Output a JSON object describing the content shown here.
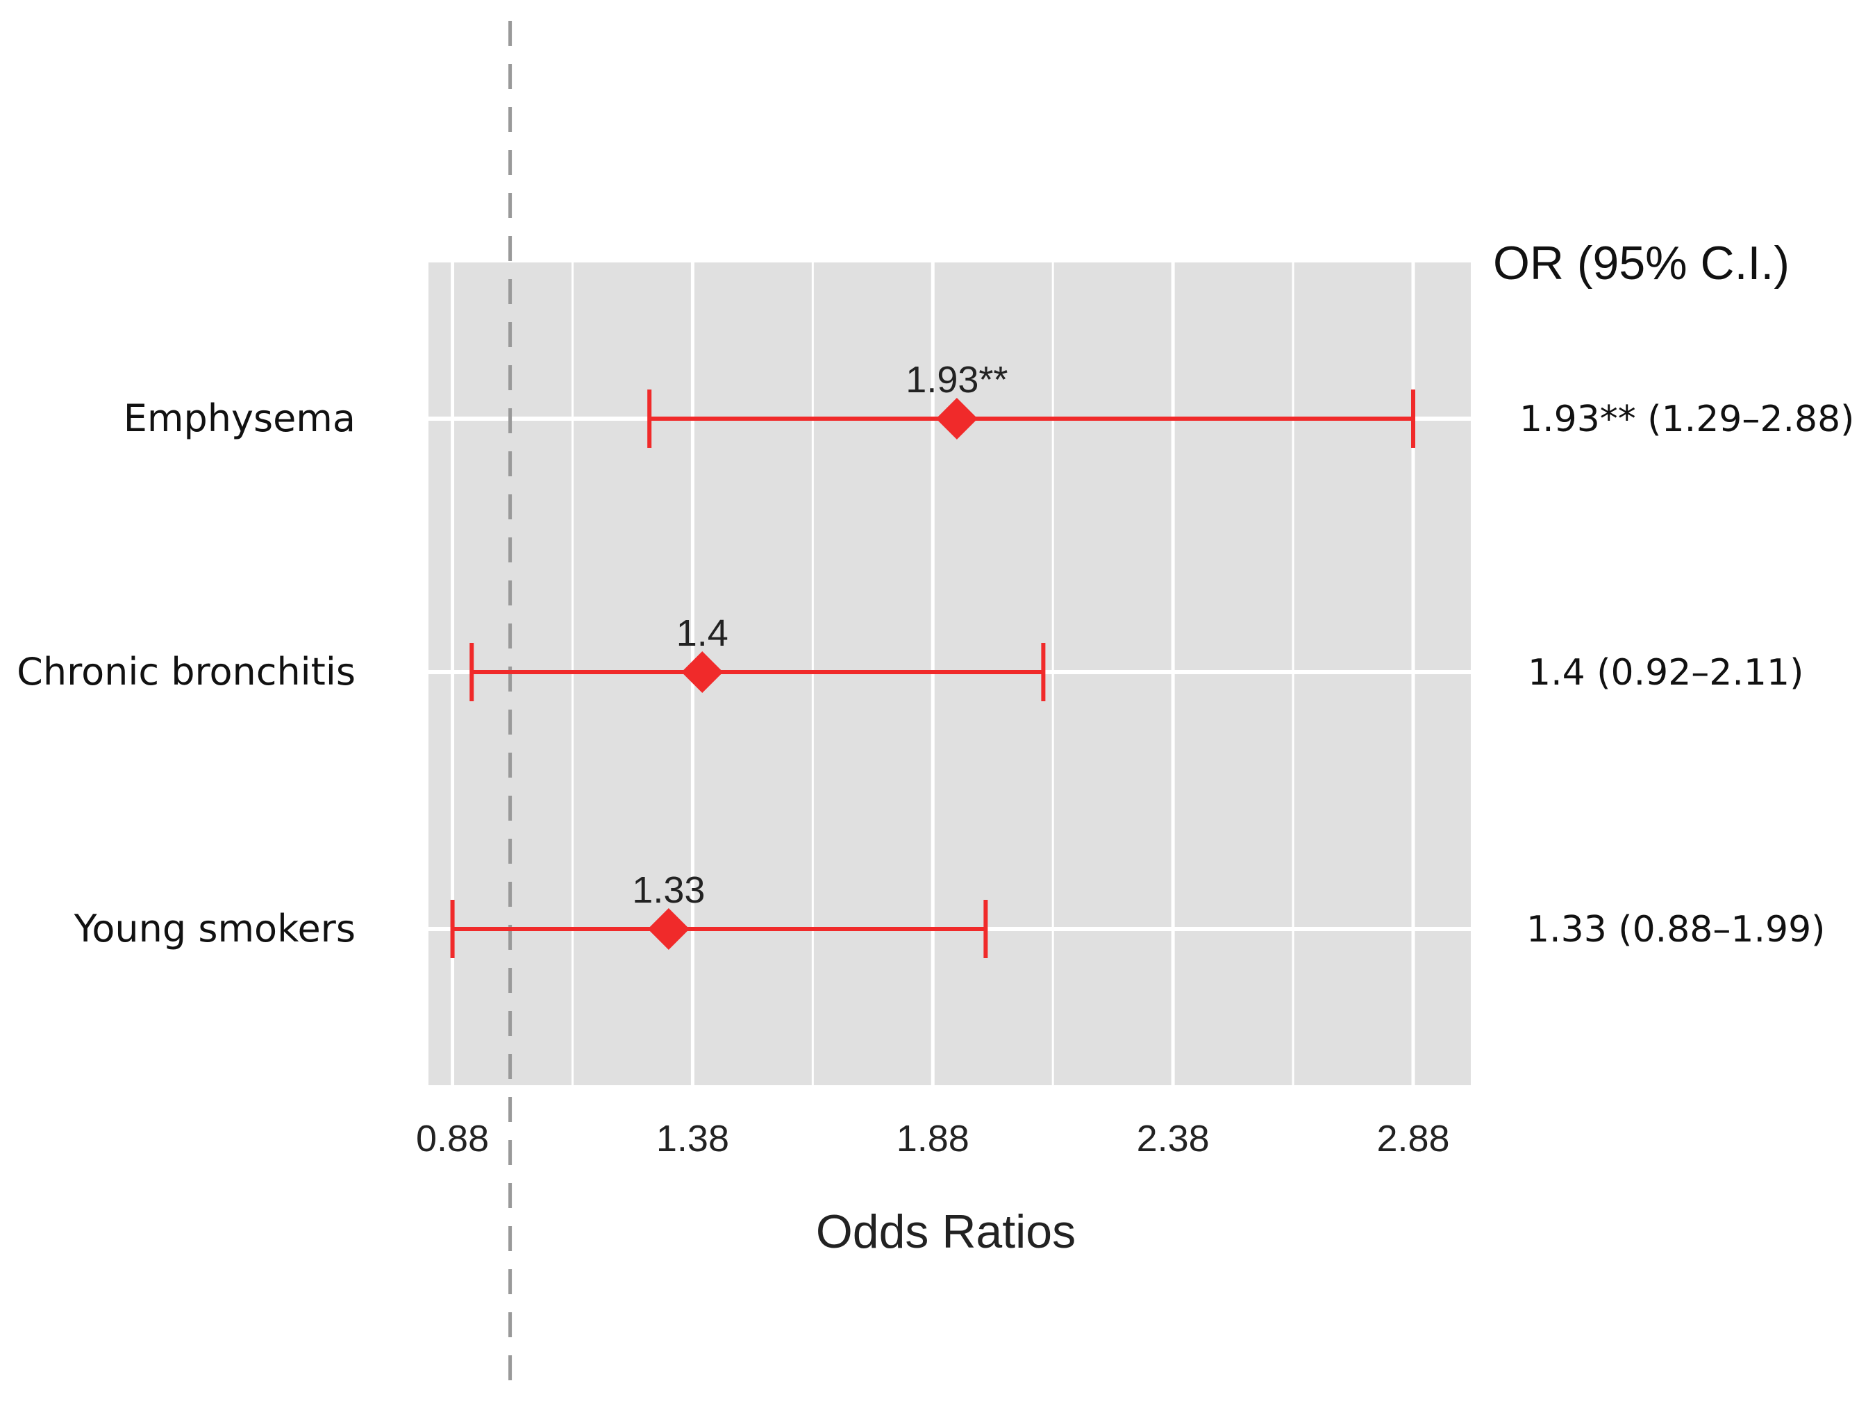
{
  "chart_data": {
    "type": "forest",
    "xlabel": "Odds Ratios",
    "ci_header": "OR (95% C.I.)",
    "x_ticks": [
      "0.88",
      "1.38",
      "1.88",
      "2.38",
      "2.88"
    ],
    "x_tick_values": [
      0.88,
      1.38,
      1.88,
      2.38,
      2.88
    ],
    "xlim": [
      0.83,
      3.0
    ],
    "reference_line": 1.0,
    "grid": true,
    "rows": [
      {
        "label": "Emphysema",
        "or": 1.93,
        "lower": 1.29,
        "upper": 2.88,
        "point_label": "1.93**",
        "ci_text": "1.93** (1.29–2.88)"
      },
      {
        "label": "Chronic bronchitis",
        "or": 1.4,
        "lower": 0.92,
        "upper": 2.11,
        "point_label": "1.4",
        "ci_text": "1.4 (0.92–2.11)"
      },
      {
        "label": "Young smokers",
        "or": 1.33,
        "lower": 0.88,
        "upper": 1.99,
        "point_label": "1.33",
        "ci_text": "1.33 (0.88–1.99)"
      }
    ],
    "colors": {
      "panel": "#e0e0e0",
      "grid": "#ffffff",
      "marker": "#f02a2a",
      "reference": "#999999"
    }
  }
}
